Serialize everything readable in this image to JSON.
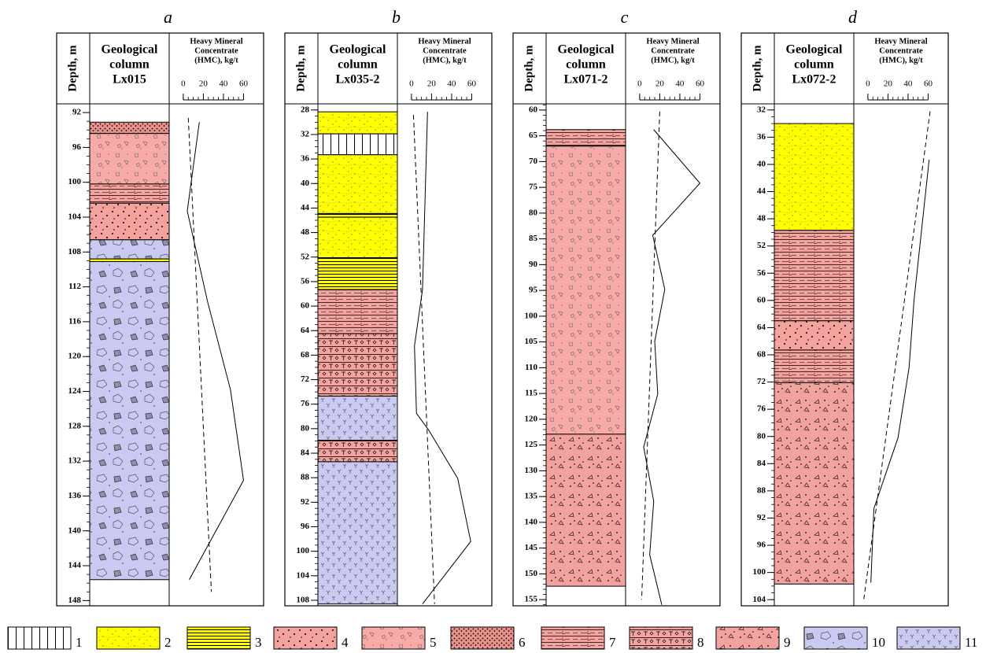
{
  "chart_data": [
    {
      "type": "strip-log",
      "panel_label": "a",
      "depth_label": "Depth, m",
      "column_title": [
        "Geological",
        "column",
        "Lx015"
      ],
      "hmc_title": [
        "Heavy Mineral",
        "Concentrate",
        "(HMC), kg/t"
      ],
      "ylim": [
        91.0,
        148.6
      ],
      "yticks": [
        92,
        96,
        100,
        104,
        108,
        112,
        116,
        120,
        124,
        128,
        132,
        136,
        140,
        144,
        148
      ],
      "xlim": [
        -14,
        80
      ],
      "xticks": [
        0,
        20,
        40,
        60
      ],
      "layers": [
        {
          "top": 93.1,
          "bottom": 94.4,
          "lith": 6
        },
        {
          "top": 94.4,
          "bottom": 100.2,
          "lith": 5
        },
        {
          "top": 100.2,
          "bottom": 102.4,
          "lith": 7
        },
        {
          "top": 102.4,
          "bottom": 106.6,
          "lith": 4
        },
        {
          "top": 106.6,
          "bottom": 108.8,
          "lith": 10
        },
        {
          "top": 108.8,
          "bottom": 109.1,
          "lith": 3
        },
        {
          "top": 109.1,
          "bottom": 145.6,
          "lith": 10
        }
      ],
      "hmc": {
        "depth": [
          93.1,
          103.3,
          113.6,
          123.8,
          134.2,
          145.6
        ],
        "values": [
          16,
          4,
          24,
          47,
          60,
          6
        ]
      },
      "trend": {
        "depth": [
          92.6,
          147
        ],
        "values": [
          5,
          28
        ]
      }
    },
    {
      "type": "strip-log",
      "panel_label": "b",
      "depth_label": "Depth, m",
      "column_title": [
        "Geological",
        "column",
        "Lx035-2"
      ],
      "hmc_title": [
        "Heavy Mineral",
        "Concentrate",
        "(HMC), kg/t"
      ],
      "ylim": [
        27.0,
        108.9
      ],
      "yticks": [
        28,
        32,
        36,
        40,
        44,
        48,
        52,
        56,
        60,
        64,
        68,
        72,
        76,
        80,
        84,
        88,
        92,
        96,
        100,
        104,
        108
      ],
      "xlim": [
        -14,
        80
      ],
      "xticks": [
        0,
        20,
        40,
        60
      ],
      "layers": [
        {
          "top": 28.3,
          "bottom": 31.9,
          "lith": 2
        },
        {
          "top": 31.9,
          "bottom": 35.3,
          "lith": 1
        },
        {
          "top": 35.3,
          "bottom": 44.9,
          "lith": 2
        },
        {
          "top": 44.9,
          "bottom": 45.5,
          "lith": 3
        },
        {
          "top": 45.5,
          "bottom": 52.1,
          "lith": 2
        },
        {
          "top": 52.1,
          "bottom": 57.3,
          "lith": 3
        },
        {
          "top": 57.3,
          "bottom": 64.5,
          "lith": 7
        },
        {
          "top": 64.5,
          "bottom": 74.7,
          "lith": 8
        },
        {
          "top": 74.7,
          "bottom": 81.9,
          "lith": 11
        },
        {
          "top": 81.9,
          "bottom": 85.4,
          "lith": 8
        },
        {
          "top": 85.4,
          "bottom": 108.6,
          "lith": 11
        }
      ],
      "hmc": {
        "depth": [
          28.3,
          57.3,
          66.5,
          77.5,
          80.2,
          88.1,
          98.4,
          108.6
        ],
        "values": [
          16,
          11,
          3,
          5,
          17,
          46,
          59,
          11
        ]
      },
      "trend": {
        "depth": [
          28.8,
          108.6
        ],
        "values": [
          2,
          23
        ]
      }
    },
    {
      "type": "strip-log",
      "panel_label": "c",
      "depth_label": "Depth, m",
      "column_title": [
        "Geological",
        "column",
        "Lx071-2"
      ],
      "hmc_title": [
        "Heavy Mineral",
        "Concentrate",
        "(HMC), kg/t"
      ],
      "ylim": [
        58.8,
        156.2
      ],
      "yticks": [
        60,
        65,
        70,
        75,
        80,
        85,
        90,
        95,
        100,
        105,
        110,
        115,
        120,
        125,
        130,
        135,
        140,
        145,
        150,
        155
      ],
      "xlim": [
        -14,
        80
      ],
      "xticks": [
        0,
        20,
        40,
        60
      ],
      "layers": [
        {
          "top": 63.8,
          "bottom": 67.0,
          "lith": 7
        },
        {
          "top": 67.0,
          "bottom": 122.9,
          "lith": 5
        },
        {
          "top": 122.9,
          "bottom": 152.4,
          "lith": 9
        }
      ],
      "hmc": {
        "depth": [
          63.8,
          74.2,
          84.3,
          94.8,
          104.9,
          115.1,
          125.4,
          135.9,
          146.3,
          156
        ],
        "values": [
          14,
          60,
          13,
          25,
          15,
          18,
          4,
          14,
          10,
          22
        ]
      },
      "trend": {
        "depth": [
          60.3,
          155
        ],
        "values": [
          20,
          2
        ]
      }
    },
    {
      "type": "strip-log",
      "panel_label": "d",
      "depth_label": "Depth, m",
      "column_title": [
        "Geological",
        "column",
        "Lx072-2"
      ],
      "hmc_title": [
        "Heavy Mineral",
        "Concentrate",
        "(HMC), kg/t"
      ],
      "ylim": [
        31.1,
        104.9
      ],
      "yticks": [
        32,
        36,
        40,
        44,
        48,
        52,
        56,
        60,
        64,
        68,
        72,
        76,
        80,
        84,
        88,
        92,
        96,
        100,
        104
      ],
      "xlim": [
        -14,
        80
      ],
      "xticks": [
        0,
        20,
        40,
        60
      ],
      "layers": [
        {
          "top": 34.0,
          "bottom": 49.7,
          "lith": 2
        },
        {
          "top": 49.7,
          "bottom": 63.0,
          "lith": 7
        },
        {
          "top": 63.0,
          "bottom": 67.3,
          "lith": 4
        },
        {
          "top": 67.3,
          "bottom": 72.1,
          "lith": 7
        },
        {
          "top": 72.1,
          "bottom": 101.7,
          "lith": 9
        }
      ],
      "hmc": {
        "depth": [
          39.3,
          59.9,
          69.9,
          80.2,
          90.6,
          101.5
        ],
        "values": [
          61,
          46,
          41,
          30,
          6,
          3
        ]
      },
      "trend": {
        "depth": [
          32.2,
          103.9
        ],
        "values": [
          62,
          -4
        ]
      }
    }
  ],
  "legend": [
    {
      "lith": 1,
      "label": "1"
    },
    {
      "lith": 2,
      "label": "2"
    },
    {
      "lith": 3,
      "label": "3"
    },
    {
      "lith": 4,
      "label": "4"
    },
    {
      "lith": 5,
      "label": "5"
    },
    {
      "lith": 6,
      "label": "6"
    },
    {
      "lith": 7,
      "label": "7"
    },
    {
      "lith": 8,
      "label": "8"
    },
    {
      "lith": 9,
      "label": "9"
    },
    {
      "lith": 10,
      "label": "10"
    },
    {
      "lith": 11,
      "label": "11"
    }
  ]
}
